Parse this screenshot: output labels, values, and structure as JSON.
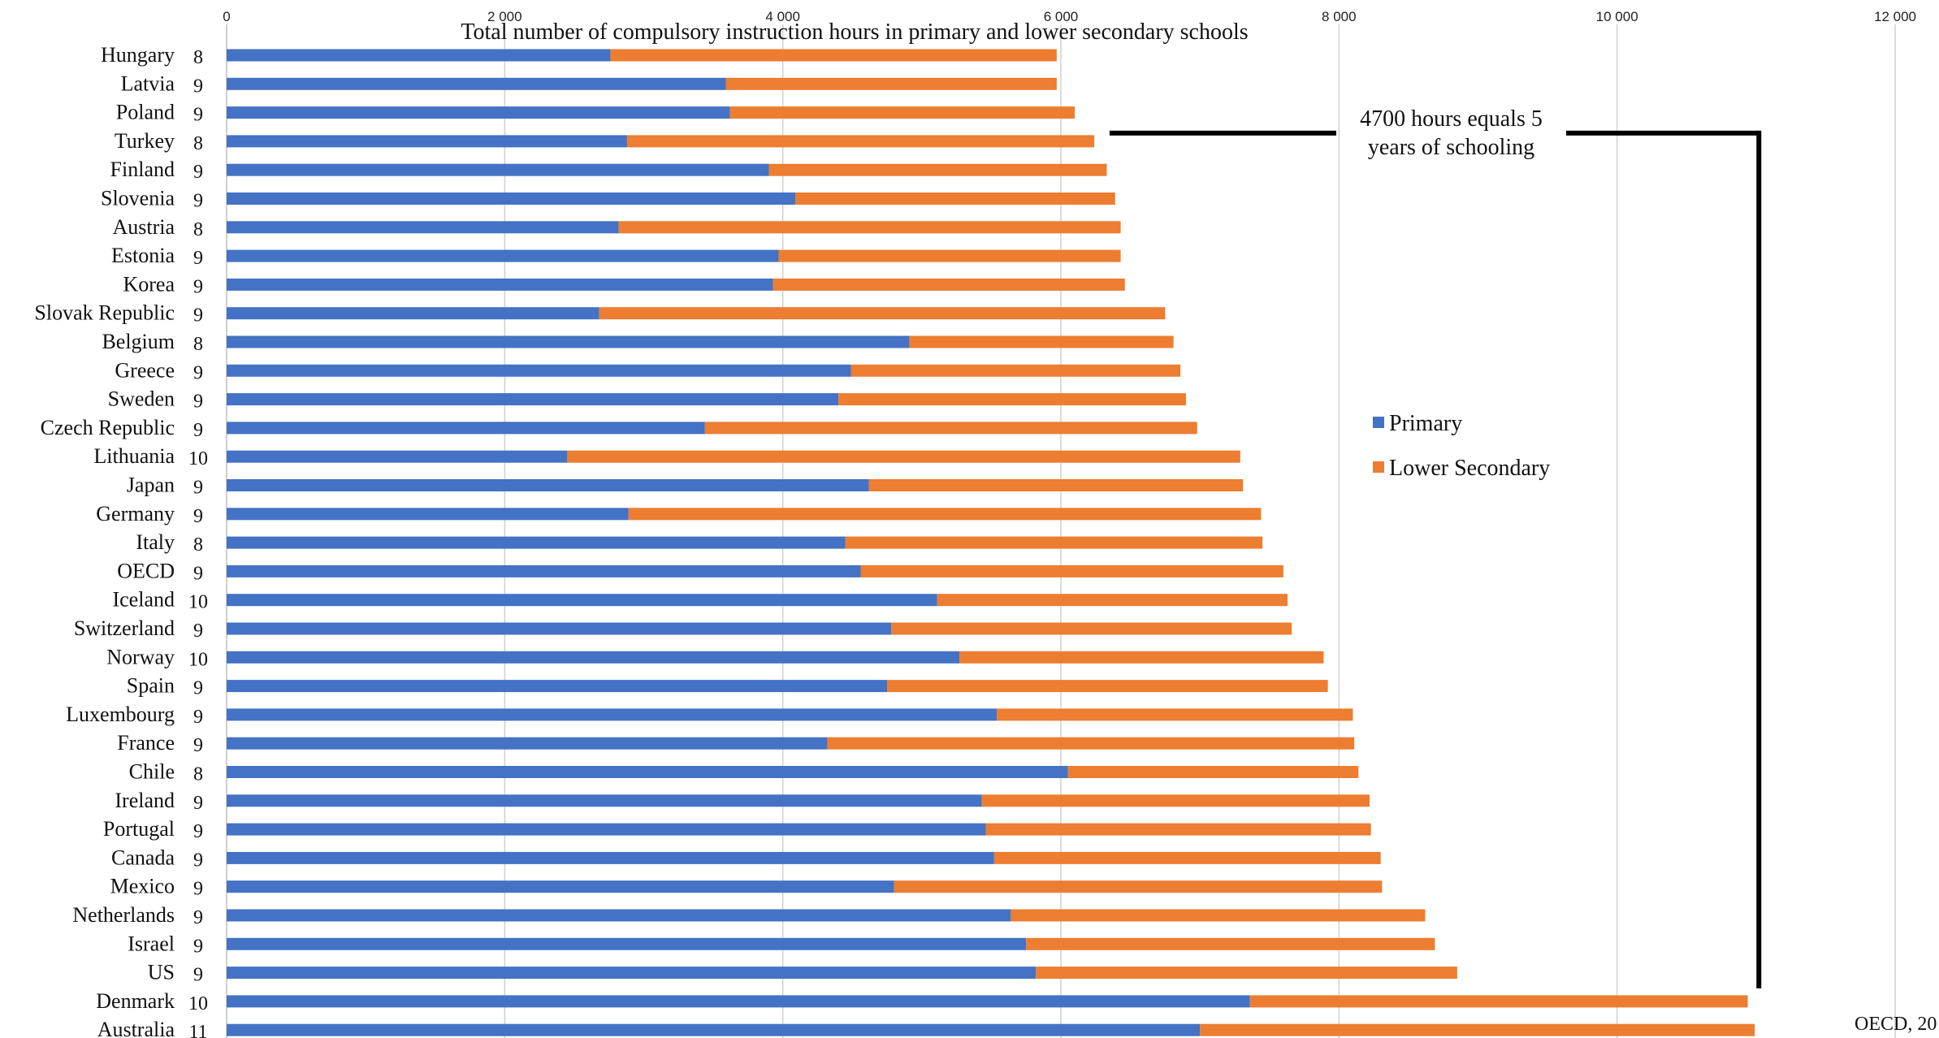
{
  "chart_data": {
    "type": "bar",
    "orientation": "horizontal",
    "stacked": true,
    "title": "Total number of compulsory instruction hours in primary and lower secondary schools",
    "xlim": [
      0,
      12000
    ],
    "x_ticks": [
      0,
      2000,
      4000,
      6000,
      8000,
      10000,
      12000
    ],
    "x_tick_labels": [
      "0",
      "2 000",
      "4 000",
      "6 000",
      "8 000",
      "10 000",
      "12 000"
    ],
    "grid": "vertical",
    "legend_position": "right",
    "categories": [
      "Hungary",
      "Latvia",
      "Poland",
      "Turkey",
      "Finland",
      "Slovenia",
      "Austria",
      "Estonia",
      "Korea",
      "Slovak Republic",
      "Belgium",
      "Greece",
      "Sweden",
      "Czech Republic",
      "Lithuania",
      "Japan",
      "Germany",
      "Italy",
      "OECD",
      "Iceland",
      "Switzerland",
      "Norway",
      "Spain",
      "Luxembourg",
      "France",
      "Chile",
      "Ireland",
      "Portugal",
      "Canada",
      "Mexico",
      "Netherlands",
      "Israel",
      "US",
      "Denmark",
      "Australia"
    ],
    "years": [
      "8",
      "9",
      "9",
      "8",
      "9",
      "9",
      "8",
      "9",
      "9",
      "9",
      "8",
      "9",
      "9",
      "9",
      "10",
      "9",
      "9",
      "8",
      "9",
      "10",
      "9",
      "10",
      "9",
      "9",
      "9",
      "8",
      "9",
      "9",
      "9",
      "9",
      "9",
      "9",
      "9",
      "10",
      "11"
    ],
    "series": [
      {
        "name": "Primary",
        "color": "#4472C4",
        "values": [
          2760,
          3590,
          3620,
          2880,
          3900,
          4090,
          2820,
          3970,
          3930,
          2680,
          4910,
          4490,
          4400,
          3440,
          2450,
          4620,
          2890,
          4450,
          4560,
          5110,
          4780,
          5270,
          4750,
          5540,
          4320,
          6050,
          5430,
          5460,
          5520,
          4800,
          5640,
          5750,
          5820,
          7360,
          7000
        ]
      },
      {
        "name": "Lower Secondary",
        "color": "#ED7D31",
        "values": [
          3210,
          2380,
          2480,
          3360,
          2430,
          2300,
          3610,
          2460,
          2530,
          4070,
          1900,
          2370,
          2500,
          3540,
          4840,
          2690,
          4550,
          3000,
          3040,
          2520,
          2880,
          2620,
          3170,
          2560,
          3790,
          2090,
          2790,
          2770,
          2780,
          3510,
          2980,
          2940,
          3030,
          3580,
          3990
        ]
      }
    ],
    "annotation": "4700 hours equals 5 years of schooling",
    "annotation_bracket_x_range": [
      6350,
      11020
    ],
    "source": "OECD, 20"
  }
}
